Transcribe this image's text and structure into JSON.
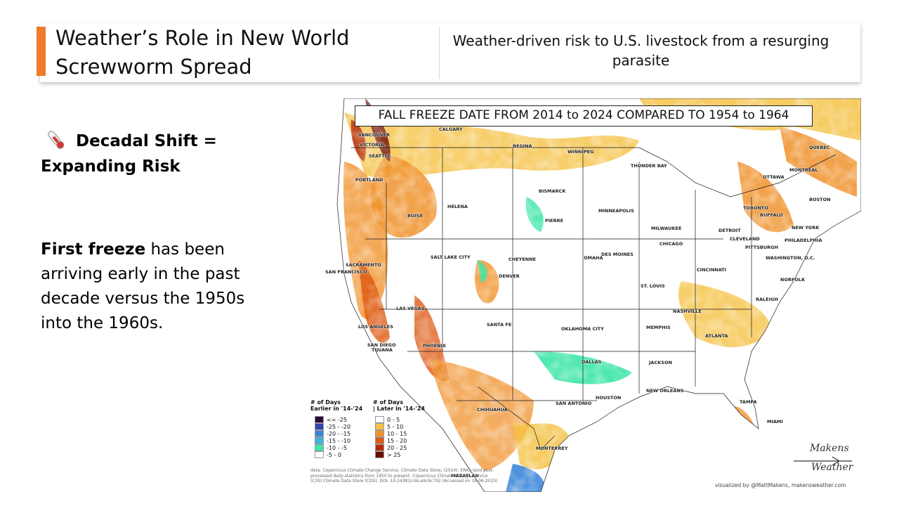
{
  "header": {
    "title": "Weather’s Role in New World Screwworm Spread",
    "subtitle": "Weather-driven risk to U.S. livestock from a resurging parasite"
  },
  "left_panel": {
    "icon": "thermometer-icon",
    "heading": "Decadal Shift = Expanding Risk",
    "body_bold": "First freeze",
    "body_rest": " has been arriving early in the past decade versus the 1950s into the 1960s."
  },
  "map": {
    "title": "FALL FREEZE DATE FROM 2014 to 2024 COMPARED TO 1954 to 1964",
    "cities": [
      {
        "id": "vancouver",
        "label": "VANCOUVER"
      },
      {
        "id": "victoria",
        "label": "VICTORIA"
      },
      {
        "id": "seattle",
        "label": "SEATTLE"
      },
      {
        "id": "calgary",
        "label": "CALGARY"
      },
      {
        "id": "regina",
        "label": "REGINA"
      },
      {
        "id": "winnipeg",
        "label": "WINNIPEG"
      },
      {
        "id": "thunder_bay",
        "label": "THUNDER BAY"
      },
      {
        "id": "quebec",
        "label": "QUEBEC"
      },
      {
        "id": "montreal",
        "label": "MONTREAL"
      },
      {
        "id": "ottawa",
        "label": "OTTAWA"
      },
      {
        "id": "portland",
        "label": "PORTLAND"
      },
      {
        "id": "helena",
        "label": "HELENA"
      },
      {
        "id": "bismarck",
        "label": "BISMARCK"
      },
      {
        "id": "minneapolis",
        "label": "MINNEAPOLIS"
      },
      {
        "id": "toronto",
        "label": "TORONTO"
      },
      {
        "id": "buffalo",
        "label": "BUFFALO"
      },
      {
        "id": "boston",
        "label": "BOSTON"
      },
      {
        "id": "boise",
        "label": "BOISE"
      },
      {
        "id": "pierre",
        "label": "PIERRE"
      },
      {
        "id": "milwaukee",
        "label": "MILWAUKEE"
      },
      {
        "id": "detroit",
        "label": "DETROIT"
      },
      {
        "id": "cleveland",
        "label": "CLEVELAND"
      },
      {
        "id": "new_york",
        "label": "NEW YORK"
      },
      {
        "id": "philadelphia",
        "label": "PHILADELPHIA"
      },
      {
        "id": "pittsburgh",
        "label": "PITTSBURGH"
      },
      {
        "id": "chicago",
        "label": "CHICAGO"
      },
      {
        "id": "des_moines",
        "label": "DES MOINES"
      },
      {
        "id": "omaha",
        "label": "OMAHA"
      },
      {
        "id": "salt_lake_city",
        "label": "SALT LAKE CITY"
      },
      {
        "id": "cheyenne",
        "label": "CHEYENNE"
      },
      {
        "id": "sacramento",
        "label": "SACRAMENTO"
      },
      {
        "id": "san_francisco",
        "label": "SAN FRANCISCO"
      },
      {
        "id": "washington",
        "label": "WASHINGTON, D.C."
      },
      {
        "id": "cincinnati",
        "label": "CINCINNATI"
      },
      {
        "id": "denver",
        "label": "DENVER"
      },
      {
        "id": "st_louis",
        "label": "ST. LOUIS"
      },
      {
        "id": "norfolk",
        "label": "NORFOLK"
      },
      {
        "id": "las_vegas",
        "label": "LAS VEGAS"
      },
      {
        "id": "raleigh",
        "label": "RALEIGH"
      },
      {
        "id": "nashville",
        "label": "NASHVILLE"
      },
      {
        "id": "los_angeles",
        "label": "LOS ANGELES"
      },
      {
        "id": "santa_fe",
        "label": "SANTA FE"
      },
      {
        "id": "oklahoma_city",
        "label": "OKLAHOMA CITY"
      },
      {
        "id": "memphis",
        "label": "MEMPHIS"
      },
      {
        "id": "atlanta",
        "label": "ATLANTA"
      },
      {
        "id": "san_diego",
        "label": "SAN DIEGO"
      },
      {
        "id": "tijuana",
        "label": "TIJUANA"
      },
      {
        "id": "phoenix",
        "label": "PHOENIX"
      },
      {
        "id": "dallas",
        "label": "DALLAS"
      },
      {
        "id": "jackson",
        "label": "JACKSON"
      },
      {
        "id": "new_orleans",
        "label": "NEW ORLEANS"
      },
      {
        "id": "houston",
        "label": "HOUSTON"
      },
      {
        "id": "san_antonio",
        "label": "SAN ANTONIO"
      },
      {
        "id": "chihuahua",
        "label": "CHIHUAHUA"
      },
      {
        "id": "tampa",
        "label": "TAMPA"
      },
      {
        "id": "miami",
        "label": "MIAMI"
      },
      {
        "id": "monterrey",
        "label": "MONTERREY"
      },
      {
        "id": "mazatlan",
        "label": "MAZATLAN"
      }
    ],
    "legend": {
      "earlier_title": "# of Days\nEarlier in '14-'24",
      "later_title": "# of Days\n| Later in '14-'24",
      "earlier": [
        {
          "label": "<= -25",
          "color": "#2a0a3d"
        },
        {
          "label": "-25 - -20",
          "color": "#3344aa"
        },
        {
          "label": "-20 - -15",
          "color": "#3b86d9"
        },
        {
          "label": "-15 - -10",
          "color": "#38b5e0"
        },
        {
          "label": "-10 - -5",
          "color": "#3de6a8"
        },
        {
          "label": "-5 - 0",
          "color": "#ffffff"
        }
      ],
      "later": [
        {
          "label": "0 - 5",
          "color": "#ffffff"
        },
        {
          "label": "5 - 10",
          "color": "#f5c243"
        },
        {
          "label": "10 - 15",
          "color": "#f0922b"
        },
        {
          "label": "15 - 20",
          "color": "#df5a14"
        },
        {
          "label": "20 - 25",
          "color": "#b52a0c"
        },
        {
          "label": "> 25",
          "color": "#6b0a05"
        }
      ]
    },
    "source": "data: Copernicus Climate Change Service, Climate Data Store, (2024): ERA5-land post-processed daily-statistics from 1950 to present. Copernicus Climate Change Service (C3S) Climate Data Store (CDS), DOI: 10.24381/cds.e9c9c792 (Accessed on 18-06-2025)",
    "credit": "visualized by @MattMakens, makensweather.com",
    "logo": {
      "line1": "Makens",
      "line2": "Weather"
    }
  },
  "colors": {
    "accent": "#ef7b2b",
    "land": "#ffffff",
    "ocean": "#ffffff"
  }
}
